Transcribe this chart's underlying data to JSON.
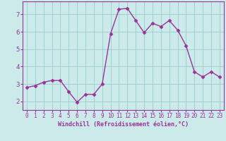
{
  "x": [
    0,
    1,
    2,
    3,
    4,
    5,
    6,
    7,
    8,
    9,
    10,
    11,
    12,
    13,
    14,
    15,
    16,
    17,
    18,
    19,
    20,
    21,
    22,
    23
  ],
  "y": [
    2.8,
    2.9,
    3.1,
    3.2,
    3.2,
    2.55,
    1.95,
    2.4,
    2.4,
    3.0,
    5.9,
    7.3,
    7.35,
    6.65,
    5.95,
    6.5,
    6.3,
    6.65,
    6.1,
    5.2,
    3.7,
    3.4,
    3.7,
    3.4
  ],
  "line_color": "#993399",
  "marker": "D",
  "marker_size": 2.5,
  "bg_color": "#cceaea",
  "grid_color": "#99cccc",
  "xlabel": "Windchill (Refroidissement éolien,°C)",
  "xlabel_color": "#993399",
  "tick_color": "#993399",
  "spine_color": "#993399",
  "xlim": [
    -0.5,
    23.5
  ],
  "ylim": [
    1.5,
    7.75
  ],
  "yticks": [
    2,
    3,
    4,
    5,
    6,
    7
  ],
  "xticks": [
    0,
    1,
    2,
    3,
    4,
    5,
    6,
    7,
    8,
    9,
    10,
    11,
    12,
    13,
    14,
    15,
    16,
    17,
    18,
    19,
    20,
    21,
    22,
    23
  ],
  "tick_fontsize": 5.5,
  "ytick_fontsize": 6.5,
  "xlabel_fontsize": 6.0,
  "linewidth": 1.0
}
